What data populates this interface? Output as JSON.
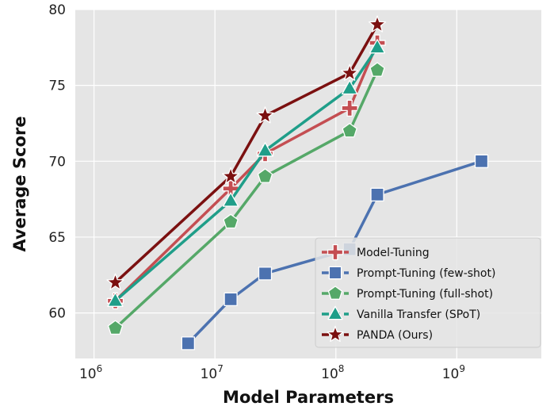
{
  "chart_data": {
    "type": "line",
    "title": "",
    "xlabel": "Model Parameters",
    "ylabel": "Average Score",
    "x_scale": "log",
    "xlim": [
      700000,
      5000000000
    ],
    "ylim": [
      57.0,
      80.0
    ],
    "x_ticks": [
      {
        "value": 1000000,
        "base": "10",
        "exp": "6"
      },
      {
        "value": 10000000,
        "base": "10",
        "exp": "7"
      },
      {
        "value": 100000000,
        "base": "10",
        "exp": "8"
      },
      {
        "value": 1000000000,
        "base": "10",
        "exp": "9"
      }
    ],
    "y_ticks": [
      {
        "value": 60,
        "label": "60"
      },
      {
        "value": 65,
        "label": "65"
      },
      {
        "value": 70,
        "label": "70"
      },
      {
        "value": 75,
        "label": "75"
      },
      {
        "value": 80,
        "label": "80"
      }
    ],
    "grid": true,
    "background": "#e5e5e5",
    "legend_position": "lower-right",
    "series": [
      {
        "name": "Model-Tuning",
        "color": "#c44e52",
        "marker": "plus",
        "x": [
          1500000,
          13500000,
          26000000,
          130000000,
          220000000
        ],
        "y": [
          60.8,
          68.2,
          70.5,
          73.5,
          77.8
        ]
      },
      {
        "name": "Prompt-Tuning (few-shot)",
        "color": "#4c72b0",
        "marker": "square",
        "x": [
          6000000,
          13500000,
          26000000,
          130000000,
          220000000,
          1600000000
        ],
        "y": [
          58.0,
          60.9,
          62.6,
          64.2,
          67.8,
          70.0
        ]
      },
      {
        "name": "Prompt-Tuning (full-shot)",
        "color": "#55a868",
        "marker": "pentagon",
        "x": [
          1500000,
          13500000,
          26000000,
          130000000,
          220000000
        ],
        "y": [
          59.0,
          66.0,
          69.0,
          72.0,
          76.0
        ]
      },
      {
        "name": "Vanilla Transfer (SPoT)",
        "color": "#1f9e89",
        "marker": "triangle",
        "x": [
          1500000,
          13500000,
          26000000,
          130000000,
          220000000
        ],
        "y": [
          60.8,
          67.4,
          70.7,
          74.8,
          77.5
        ]
      },
      {
        "name": "PANDA (Ours)",
        "color": "#7b1010",
        "marker": "star",
        "x": [
          1500000,
          13500000,
          26000000,
          130000000,
          220000000
        ],
        "y": [
          62.0,
          69.0,
          73.0,
          75.8,
          79.0
        ]
      }
    ]
  }
}
